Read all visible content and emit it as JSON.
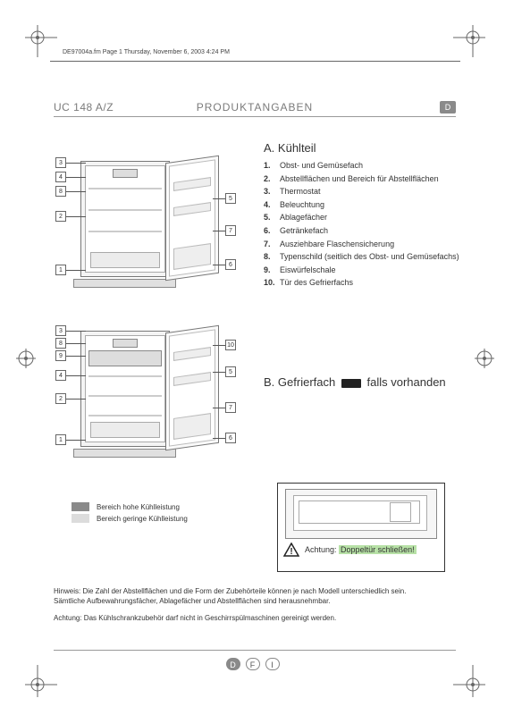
{
  "doc_meta_line": "DE97004a.fm  Page 1  Thursday, November 6, 2003  4:24 PM",
  "model": "UC 148 A/Z",
  "title": "PRODUKTANGABEN",
  "lang_badge": "D",
  "section_a": {
    "letter": "A.",
    "heading": "Kühlteil",
    "items": [
      "Obst- und Gemüsefach",
      "Abstellflächen und Bereich für Abstellflächen",
      "Thermostat",
      "Beleuchtung",
      "Ablagefächer",
      "Getränkefach",
      "Ausziehbare Flaschensicherung",
      "Typenschild (seitlich des Obst- und Gemüsefachs)",
      "Eiswürfelschale",
      "Tür des Gefrierfachs"
    ]
  },
  "section_b": {
    "letter": "B.",
    "heading_pre": "Gefrierfach",
    "heading_post": "falls vorhanden"
  },
  "legend": {
    "high_color": "#8a8a8a",
    "low_color": "#dcdcdc",
    "high": "Bereich hohe Kühlleistung",
    "low": "Bereich geringe Kühlleistung"
  },
  "warning": {
    "label": "Achtung:",
    "text": "Doppeltür schließen!",
    "highlight_bg": "#b7e1a6"
  },
  "notes": {
    "line1": "Hinweis: Die Zahl der Abstellflächen und die Form der Zubehörteile können je nach Modell unterschiedlich sein.",
    "line2": "Sämtliche Aufbewahrungsfächer, Ablagefächer und Abstellflächen sind herausnehmbar.",
    "line3": "Achtung: Das Kühlschrankzubehör darf nicht in Geschirrspülmaschinen gereinigt werden."
  },
  "footer_badges": [
    {
      "label": "D",
      "bg": "#8a8a8a",
      "fg": "#ffffff"
    },
    {
      "label": "F",
      "bg": "#ffffff",
      "fg": "#555555"
    },
    {
      "label": "I",
      "bg": "#ffffff",
      "fg": "#555555"
    }
  ],
  "colors": {
    "rule": "#999999",
    "ink": "#333333",
    "muted": "#7b7b7b"
  },
  "callouts_a": {
    "left": [
      "3",
      "4",
      "8",
      "2",
      "1"
    ],
    "right": [
      "5",
      "7",
      "6"
    ]
  },
  "callouts_b": {
    "left": [
      "3",
      "8",
      "9",
      "4",
      "2",
      "1"
    ],
    "right": [
      "10",
      "5",
      "7",
      "6"
    ]
  }
}
